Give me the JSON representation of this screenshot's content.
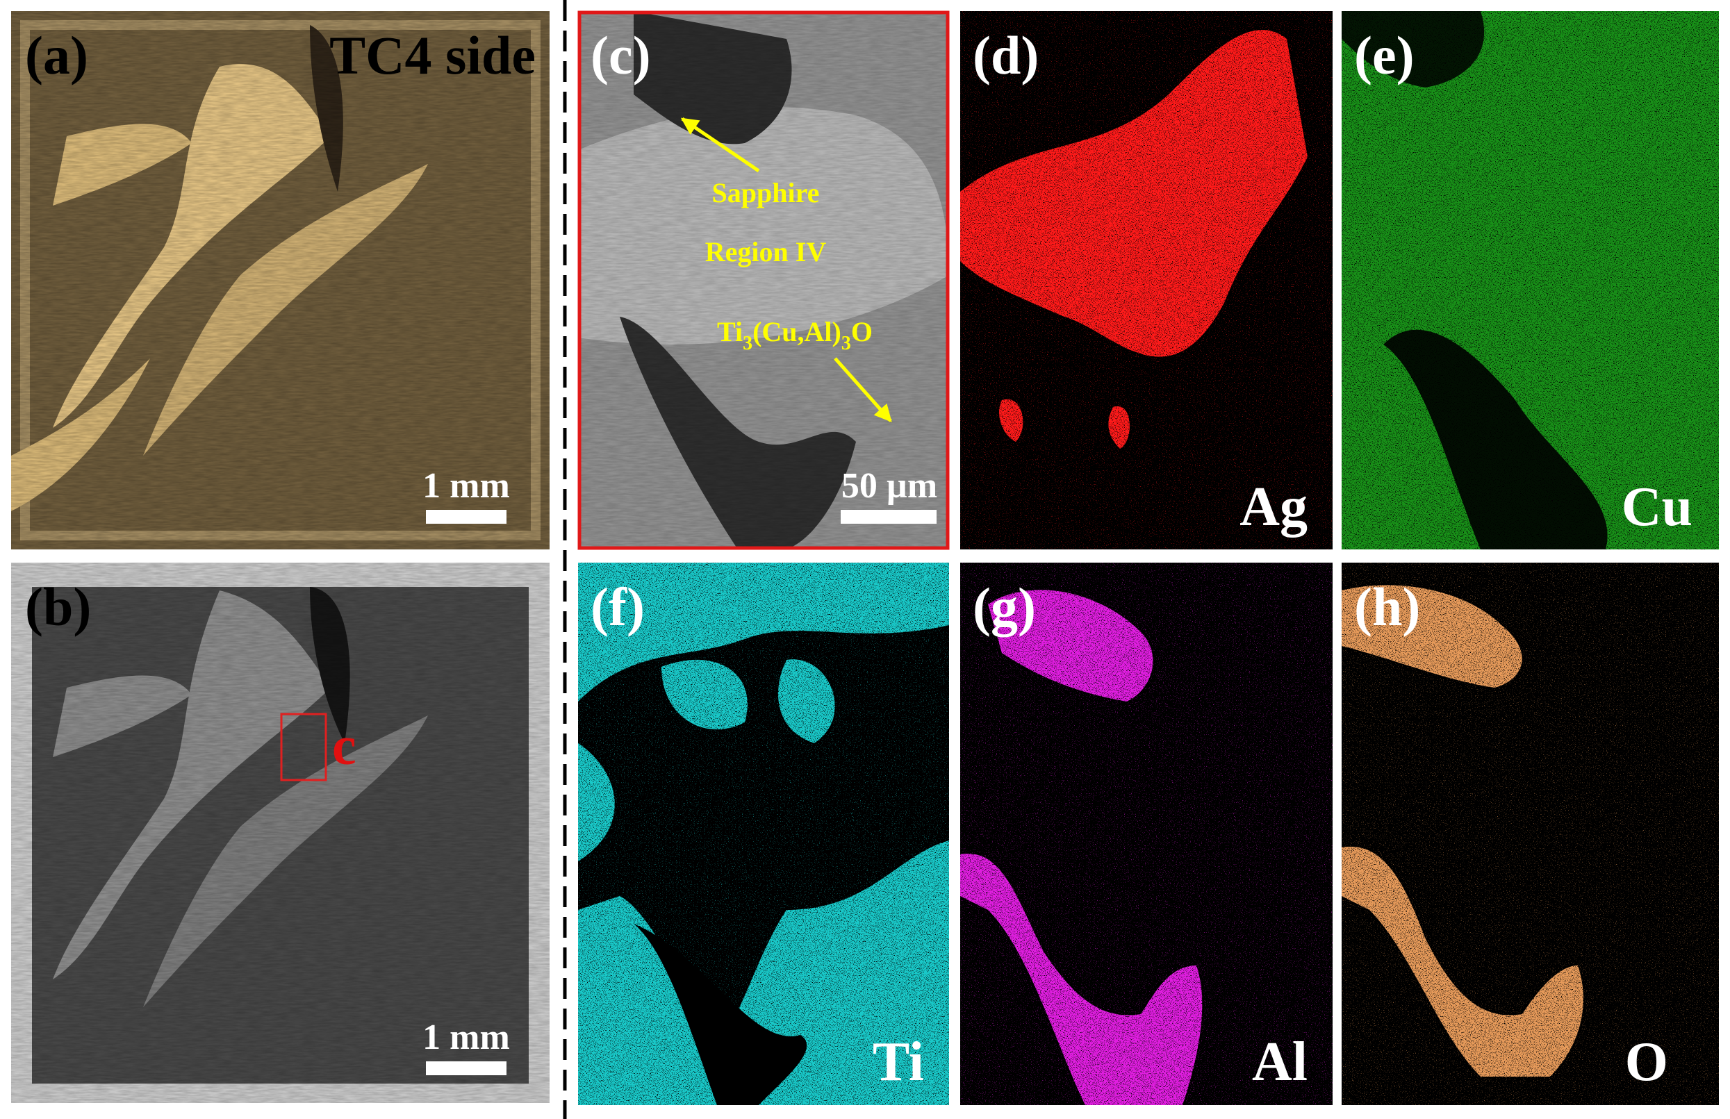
{
  "panels": {
    "a": {
      "label": "(a)",
      "title": "TC4 side",
      "scale_bar": "1 mm"
    },
    "b": {
      "label": "(b)",
      "scale_bar": "1 mm",
      "marker": "c"
    },
    "c": {
      "label": "(c)",
      "annotations": [
        "Sapphire",
        "Region IV"
      ],
      "formula": [
        "Ti",
        "3",
        "(Cu,Al)",
        "3",
        "O"
      ],
      "scale_bar": "50 µm"
    },
    "d": {
      "label": "(d)",
      "element": "Ag"
    },
    "e": {
      "label": "(e)",
      "element": "Cu"
    },
    "f": {
      "label": "(f)",
      "element": "Ti"
    },
    "g": {
      "label": "(g)",
      "element": "Al"
    },
    "h": {
      "label": "(h)",
      "element": "O"
    }
  }
}
